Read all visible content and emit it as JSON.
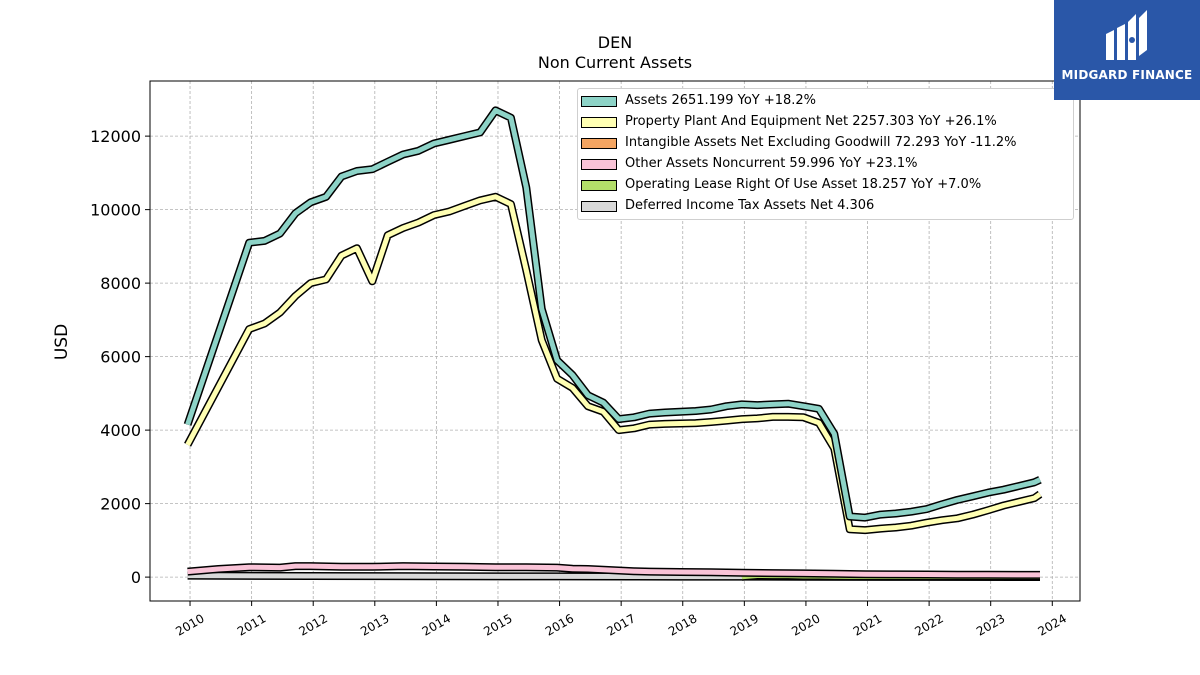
{
  "title": "DEN",
  "subtitle": "Non Current  Assets",
  "logo": {
    "brand": "MIDGARD FINANCE",
    "icon": "m-logo-icon",
    "background": "#2a57a8"
  },
  "chart_data": {
    "type": "line",
    "title": "DEN",
    "subtitle": "Non Current  Assets",
    "xlabel": "",
    "ylabel": "USD",
    "xlim": [
      2009.35,
      2024.45
    ],
    "ylim": [
      -650,
      13500
    ],
    "x_ticks": [
      2010,
      2011,
      2012,
      2013,
      2014,
      2015,
      2016,
      2017,
      2018,
      2019,
      2020,
      2021,
      2022,
      2023,
      2024
    ],
    "x_tick_labels": [
      "2010",
      "2011",
      "2012",
      "2013",
      "2014",
      "2015",
      "2016",
      "2017",
      "2018",
      "2019",
      "2020",
      "2021",
      "2022",
      "2023",
      "2024"
    ],
    "y_ticks": [
      0,
      2000,
      4000,
      6000,
      8000,
      10000,
      12000
    ],
    "y_tick_labels": [
      "0",
      "2000",
      "4000",
      "6000",
      "8000",
      "10000",
      "12000"
    ],
    "grid": true,
    "legend_position": "top-right",
    "series": [
      {
        "name": "Assets",
        "legend_label": "Assets  2651.199 YoY +18.2%",
        "color": "#8dd3c7",
        "x": [
          2009.96,
          2010.96,
          2011.21,
          2011.46,
          2011.71,
          2011.96,
          2012.21,
          2012.46,
          2012.71,
          2012.96,
          2013.21,
          2013.46,
          2013.71,
          2013.96,
          2014.21,
          2014.46,
          2014.71,
          2014.96,
          2015.21,
          2015.46,
          2015.71,
          2015.96,
          2016.21,
          2016.46,
          2016.71,
          2016.96,
          2017.21,
          2017.46,
          2017.71,
          2017.96,
          2018.21,
          2018.46,
          2018.71,
          2018.96,
          2019.21,
          2019.46,
          2019.71,
          2019.96,
          2020.21,
          2020.46,
          2020.71,
          2020.96,
          2021.21,
          2021.46,
          2021.71,
          2021.96,
          2022.21,
          2022.46,
          2022.71,
          2022.96,
          2023.21,
          2023.46,
          2023.71,
          2023.8
        ],
        "values": [
          4150,
          9100,
          9150,
          9350,
          9900,
          10200,
          10350,
          10900,
          11050,
          11100,
          11300,
          11500,
          11600,
          11800,
          11900,
          12000,
          12100,
          12700,
          12500,
          10600,
          7300,
          5900,
          5500,
          4950,
          4750,
          4300,
          4350,
          4450,
          4480,
          4500,
          4520,
          4560,
          4650,
          4700,
          4680,
          4700,
          4720,
          4650,
          4580,
          3900,
          1650,
          1620,
          1700,
          1730,
          1780,
          1850,
          1980,
          2100,
          2200,
          2300,
          2380,
          2480,
          2580,
          2651
        ]
      },
      {
        "name": "Property Plant And Equipment Net",
        "legend_label": "Property Plant And Equipment Net  2257.303 YoY +26.1%",
        "color": "#ffffb3",
        "x": [
          2009.96,
          2010.96,
          2011.21,
          2011.46,
          2011.71,
          2011.96,
          2012.21,
          2012.46,
          2012.71,
          2012.96,
          2013.21,
          2013.46,
          2013.71,
          2013.96,
          2014.21,
          2014.46,
          2014.71,
          2014.96,
          2015.21,
          2015.46,
          2015.71,
          2015.96,
          2016.21,
          2016.46,
          2016.71,
          2016.96,
          2017.21,
          2017.46,
          2017.71,
          2017.96,
          2018.21,
          2018.46,
          2018.71,
          2018.96,
          2019.21,
          2019.46,
          2019.71,
          2019.96,
          2020.21,
          2020.46,
          2020.71,
          2020.96,
          2021.21,
          2021.46,
          2021.71,
          2021.96,
          2022.21,
          2022.46,
          2022.71,
          2022.96,
          2023.21,
          2023.46,
          2023.71,
          2023.8
        ],
        "values": [
          3600,
          6750,
          6900,
          7200,
          7650,
          8000,
          8100,
          8750,
          8950,
          8050,
          9300,
          9500,
          9650,
          9850,
          9950,
          10100,
          10250,
          10350,
          10150,
          8350,
          6450,
          5400,
          5150,
          4650,
          4500,
          4000,
          4050,
          4150,
          4170,
          4180,
          4190,
          4220,
          4260,
          4300,
          4320,
          4360,
          4360,
          4350,
          4200,
          3500,
          1300,
          1280,
          1320,
          1350,
          1400,
          1480,
          1550,
          1600,
          1700,
          1820,
          1950,
          2050,
          2150,
          2257
        ]
      },
      {
        "name": "Intangible Assets Net Excluding Goodwill",
        "legend_label": "Intangible Assets Net Excluding Goodwill  72.293 YoY -11.2%",
        "color": "#f4a562",
        "x": [],
        "values": []
      },
      {
        "name": "Other Assets Noncurrent",
        "legend_label": "Other Assets Noncurrent  59.996 YoY +23.1%",
        "color": "#f9c3d7",
        "x": [
          2009.96,
          2010.46,
          2010.96,
          2011.46,
          2011.71,
          2011.96,
          2012.46,
          2012.96,
          2013.46,
          2013.96,
          2014.46,
          2014.96,
          2015.46,
          2015.96,
          2016.21,
          2016.46,
          2016.71,
          2016.96,
          2017.21,
          2017.46,
          2017.96,
          2018.46,
          2018.96,
          2019.46,
          2019.96,
          2020.46,
          2020.96,
          2021.46,
          2021.96,
          2022.46,
          2022.96,
          2023.46,
          2023.8
        ],
        "values": [
          150,
          220,
          270,
          260,
          300,
          300,
          280,
          280,
          300,
          290,
          280,
          270,
          270,
          260,
          230,
          220,
          200,
          180,
          160,
          150,
          140,
          130,
          120,
          110,
          100,
          90,
          80,
          75,
          70,
          65,
          62,
          61,
          60
        ]
      },
      {
        "name": "Operating Lease Right Of Use Asset",
        "legend_label": "Operating Lease Right Of Use Asset  18.257 YoY +7.0%",
        "color": "#b3de69",
        "x": [
          2018.96,
          2019.21,
          2019.46,
          2019.71,
          2019.96,
          2020.21,
          2020.46,
          2020.71,
          2020.96,
          2021.46,
          2021.96,
          2022.46,
          2022.96,
          2023.46,
          2023.8
        ],
        "values": [
          10,
          45,
          42,
          40,
          30,
          30,
          25,
          20,
          18,
          17,
          17,
          17,
          17,
          18,
          18
        ]
      },
      {
        "name": "Deferred Income Tax Assets Net",
        "legend_label": "Deferred Income Tax Assets Net  4.306",
        "color": "#d9d9d9",
        "x": [
          2009.96,
          2011.96,
          2013.96,
          2015.96,
          2017.96,
          2019.96,
          2021.96,
          2023.8
        ],
        "values": [
          40,
          30,
          25,
          20,
          15,
          10,
          6,
          4
        ]
      }
    ]
  }
}
